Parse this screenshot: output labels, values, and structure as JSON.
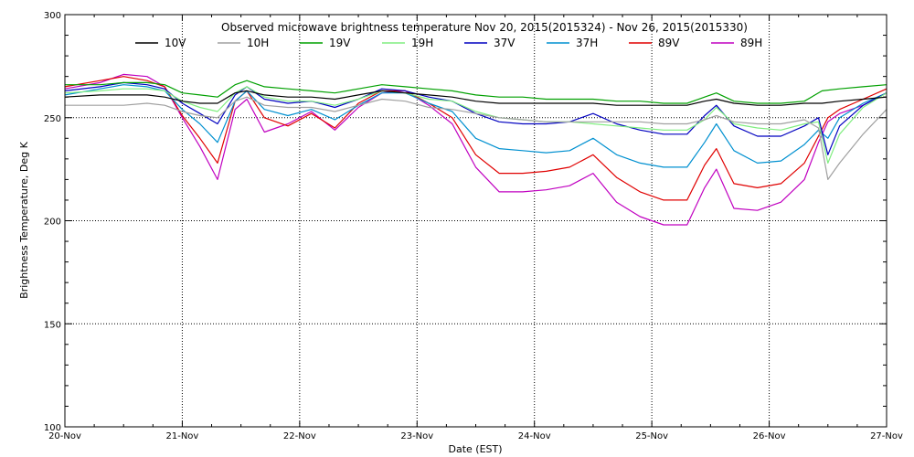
{
  "chart_data": {
    "type": "line",
    "title": "Observed microwave brightness temperature Nov 20, 2015(2015324) - Nov 26, 2015(2015330)",
    "xlabel": "Date (EST)",
    "ylabel": "Brightness Temperature, Deg K",
    "xlim": [
      0,
      7
    ],
    "ylim": [
      100,
      300
    ],
    "grid": true,
    "legend_position": "top",
    "x_ticks": [
      {
        "value": 0,
        "label": "20-Nov"
      },
      {
        "value": 1,
        "label": "21-Nov"
      },
      {
        "value": 2,
        "label": "22-Nov"
      },
      {
        "value": 3,
        "label": "23-Nov"
      },
      {
        "value": 4,
        "label": "24-Nov"
      },
      {
        "value": 5,
        "label": "25-Nov"
      },
      {
        "value": 6,
        "label": "26-Nov"
      },
      {
        "value": 7,
        "label": "27-Nov"
      }
    ],
    "y_ticks": [
      100,
      150,
      200,
      250,
      300
    ],
    "series": [
      {
        "name": "10V",
        "color": "#000000",
        "x": [
          0,
          0.3,
          0.5,
          0.7,
          0.85,
          1.0,
          1.15,
          1.3,
          1.45,
          1.55,
          1.7,
          1.9,
          2.1,
          2.3,
          2.5,
          2.7,
          2.9,
          3.1,
          3.3,
          3.5,
          3.7,
          3.9,
          4.1,
          4.3,
          4.5,
          4.7,
          4.9,
          5.1,
          5.3,
          5.45,
          5.55,
          5.7,
          5.9,
          6.1,
          6.3,
          6.45,
          6.6,
          6.8,
          7.0
        ],
        "y": [
          260,
          261,
          261,
          261,
          260,
          258,
          257,
          257,
          262,
          263,
          261,
          260,
          260,
          259,
          261,
          263,
          262,
          261,
          260,
          258,
          257,
          257,
          257,
          257,
          257,
          256,
          256,
          256,
          256,
          258,
          259,
          257,
          256,
          256,
          257,
          257,
          258,
          259,
          260
        ]
      },
      {
        "name": "10H",
        "color": "#a0a0a0",
        "x": [
          0,
          0.3,
          0.5,
          0.7,
          0.85,
          1.0,
          1.15,
          1.3,
          1.45,
          1.55,
          1.7,
          1.9,
          2.1,
          2.3,
          2.5,
          2.7,
          2.9,
          3.1,
          3.3,
          3.5,
          3.7,
          3.9,
          4.1,
          4.3,
          4.5,
          4.7,
          4.9,
          5.1,
          5.3,
          5.45,
          5.55,
          5.7,
          5.9,
          6.1,
          6.3,
          6.42,
          6.5,
          6.6,
          6.8,
          7.0
        ],
        "y": [
          256,
          256,
          256,
          257,
          256,
          253,
          251,
          250,
          258,
          260,
          256,
          255,
          255,
          253,
          256,
          259,
          258,
          255,
          254,
          252,
          250,
          249,
          248,
          248,
          248,
          248,
          248,
          247,
          247,
          249,
          251,
          248,
          247,
          247,
          249,
          245,
          220,
          228,
          242,
          254
        ]
      },
      {
        "name": "19V",
        "color": "#00a000",
        "x": [
          0,
          0.3,
          0.5,
          0.7,
          0.85,
          1.0,
          1.15,
          1.3,
          1.45,
          1.55,
          1.7,
          1.9,
          2.1,
          2.3,
          2.5,
          2.7,
          2.9,
          3.1,
          3.3,
          3.5,
          3.7,
          3.9,
          4.1,
          4.3,
          4.5,
          4.7,
          4.9,
          5.1,
          5.3,
          5.45,
          5.55,
          5.7,
          5.9,
          6.1,
          6.3,
          6.45,
          6.6,
          6.8,
          7.0
        ],
        "y": [
          266,
          266,
          267,
          267,
          266,
          262,
          261,
          260,
          266,
          268,
          265,
          264,
          263,
          262,
          264,
          266,
          265,
          264,
          263,
          261,
          260,
          260,
          259,
          259,
          259,
          258,
          258,
          257,
          257,
          260,
          262,
          258,
          257,
          257,
          258,
          263,
          264,
          265,
          266
        ]
      },
      {
        "name": "19H",
        "color": "#80ee80",
        "x": [
          0,
          0.3,
          0.5,
          0.7,
          0.85,
          1.0,
          1.15,
          1.3,
          1.45,
          1.55,
          1.7,
          1.9,
          2.1,
          2.3,
          2.5,
          2.7,
          2.9,
          3.1,
          3.3,
          3.5,
          3.7,
          3.9,
          4.1,
          4.3,
          4.5,
          4.7,
          4.9,
          5.1,
          5.3,
          5.45,
          5.55,
          5.7,
          5.9,
          6.1,
          6.3,
          6.42,
          6.5,
          6.6,
          6.8,
          7.0
        ],
        "y": [
          262,
          263,
          264,
          264,
          263,
          258,
          255,
          253,
          262,
          265,
          260,
          258,
          258,
          256,
          259,
          263,
          262,
          259,
          258,
          253,
          250,
          249,
          248,
          248,
          247,
          246,
          245,
          244,
          244,
          249,
          255,
          247,
          245,
          244,
          247,
          248,
          228,
          242,
          255,
          262
        ]
      },
      {
        "name": "37V",
        "color": "#0000c0",
        "x": [
          0,
          0.3,
          0.5,
          0.7,
          0.85,
          1.0,
          1.15,
          1.3,
          1.45,
          1.55,
          1.7,
          1.9,
          2.1,
          2.3,
          2.5,
          2.7,
          2.9,
          3.1,
          3.3,
          3.5,
          3.7,
          3.9,
          4.1,
          4.3,
          4.5,
          4.7,
          4.9,
          5.1,
          5.3,
          5.45,
          5.55,
          5.7,
          5.9,
          6.1,
          6.3,
          6.42,
          6.5,
          6.6,
          6.8,
          7.0
        ],
        "y": [
          263,
          265,
          267,
          266,
          264,
          257,
          252,
          247,
          261,
          265,
          259,
          257,
          258,
          255,
          259,
          264,
          263,
          260,
          258,
          252,
          248,
          247,
          247,
          248,
          252,
          247,
          244,
          242,
          242,
          251,
          256,
          246,
          241,
          241,
          246,
          250,
          232,
          246,
          256,
          262
        ]
      },
      {
        "name": "37H",
        "color": "#0090d0",
        "x": [
          0,
          0.3,
          0.5,
          0.7,
          0.85,
          1.0,
          1.15,
          1.3,
          1.45,
          1.55,
          1.7,
          1.9,
          2.1,
          2.3,
          2.5,
          2.7,
          2.9,
          3.1,
          3.3,
          3.5,
          3.7,
          3.9,
          4.1,
          4.3,
          4.5,
          4.7,
          4.9,
          5.1,
          5.3,
          5.45,
          5.55,
          5.7,
          5.9,
          6.1,
          6.3,
          6.42,
          6.5,
          6.6,
          6.8,
          7.0
        ],
        "y": [
          261,
          264,
          266,
          265,
          263,
          254,
          247,
          238,
          258,
          263,
          254,
          251,
          254,
          249,
          256,
          262,
          262,
          257,
          253,
          240,
          235,
          234,
          233,
          234,
          240,
          232,
          228,
          226,
          226,
          238,
          247,
          234,
          228,
          229,
          237,
          244,
          240,
          250,
          257,
          262
        ]
      },
      {
        "name": "89V",
        "color": "#e00000",
        "x": [
          0,
          0.3,
          0.5,
          0.7,
          0.85,
          1.0,
          1.15,
          1.3,
          1.45,
          1.55,
          1.7,
          1.9,
          2.1,
          2.3,
          2.5,
          2.7,
          2.9,
          3.1,
          3.3,
          3.5,
          3.7,
          3.9,
          4.1,
          4.3,
          4.5,
          4.7,
          4.9,
          5.1,
          5.3,
          5.45,
          5.55,
          5.7,
          5.9,
          6.1,
          6.3,
          6.42,
          6.5,
          6.6,
          6.8,
          7.0
        ],
        "y": [
          265,
          268,
          270,
          268,
          265,
          251,
          240,
          228,
          258,
          263,
          250,
          246,
          252,
          245,
          257,
          263,
          263,
          257,
          250,
          232,
          223,
          223,
          224,
          226,
          232,
          221,
          214,
          210,
          210,
          227,
          235,
          218,
          216,
          218,
          228,
          241,
          250,
          254,
          259,
          264
        ]
      },
      {
        "name": "89H",
        "color": "#c000c0",
        "x": [
          0,
          0.3,
          0.5,
          0.7,
          0.85,
          1.0,
          1.15,
          1.3,
          1.45,
          1.55,
          1.7,
          1.9,
          2.1,
          2.3,
          2.5,
          2.7,
          2.9,
          3.1,
          3.3,
          3.5,
          3.7,
          3.9,
          4.1,
          4.3,
          4.5,
          4.7,
          4.9,
          5.1,
          5.3,
          5.45,
          5.55,
          5.7,
          5.9,
          6.1,
          6.3,
          6.42,
          6.5,
          6.6,
          6.8,
          7.0
        ],
        "y": [
          264,
          267,
          271,
          270,
          265,
          250,
          236,
          220,
          254,
          259,
          243,
          247,
          253,
          244,
          255,
          262,
          263,
          256,
          247,
          226,
          214,
          214,
          215,
          217,
          223,
          209,
          202,
          198,
          198,
          216,
          225,
          206,
          205,
          209,
          220,
          238,
          248,
          252,
          256,
          262
        ]
      }
    ]
  }
}
